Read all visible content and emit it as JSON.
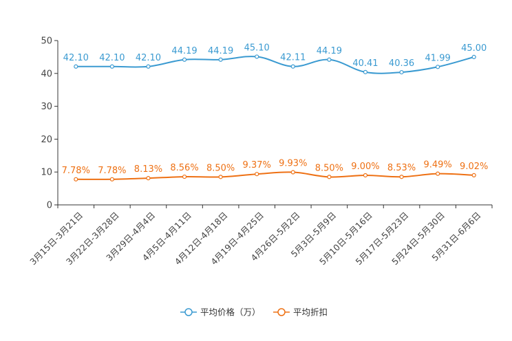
{
  "chart_data": {
    "type": "line",
    "title": "",
    "xlabel": "",
    "ylabel": "",
    "ylim": [
      0,
      50
    ],
    "yticks": [
      0,
      10,
      20,
      30,
      40,
      50
    ],
    "grid": false,
    "legend_position": "bottom-center",
    "categories": [
      "3月15日-3月21日",
      "3月22日-3月28日",
      "3月29日-4月4日",
      "4月5日-4月11日",
      "4月12日-4月18日",
      "4月19日-4月25日",
      "4月26日-5月2日",
      "5月3日-5月9日",
      "5月10日-5月16日",
      "5月17日-5月23日",
      "5月24日-5月30日",
      "5月31日-6月6日"
    ],
    "series": [
      {
        "name": "平均价格（万）",
        "color": "#3a9ad1",
        "values": [
          42.1,
          42.1,
          42.1,
          44.19,
          44.19,
          45.1,
          42.11,
          44.19,
          40.41,
          40.36,
          41.99,
          45.0
        ],
        "labels": [
          "42.10",
          "42.10",
          "42.10",
          "44.19",
          "44.19",
          "45.10",
          "42.11",
          "44.19",
          "40.41",
          "40.36",
          "41.99",
          "45.00"
        ]
      },
      {
        "name": "平均折扣",
        "color": "#ee7013",
        "values": [
          7.78,
          7.78,
          8.13,
          8.56,
          8.5,
          9.37,
          9.93,
          8.5,
          9.0,
          8.53,
          9.49,
          9.02
        ],
        "labels": [
          "7.78%",
          "7.78%",
          "8.13%",
          "8.56%",
          "8.50%",
          "9.37%",
          "9.93%",
          "8.50%",
          "9.00%",
          "8.53%",
          "9.49%",
          "9.02%"
        ]
      }
    ]
  }
}
